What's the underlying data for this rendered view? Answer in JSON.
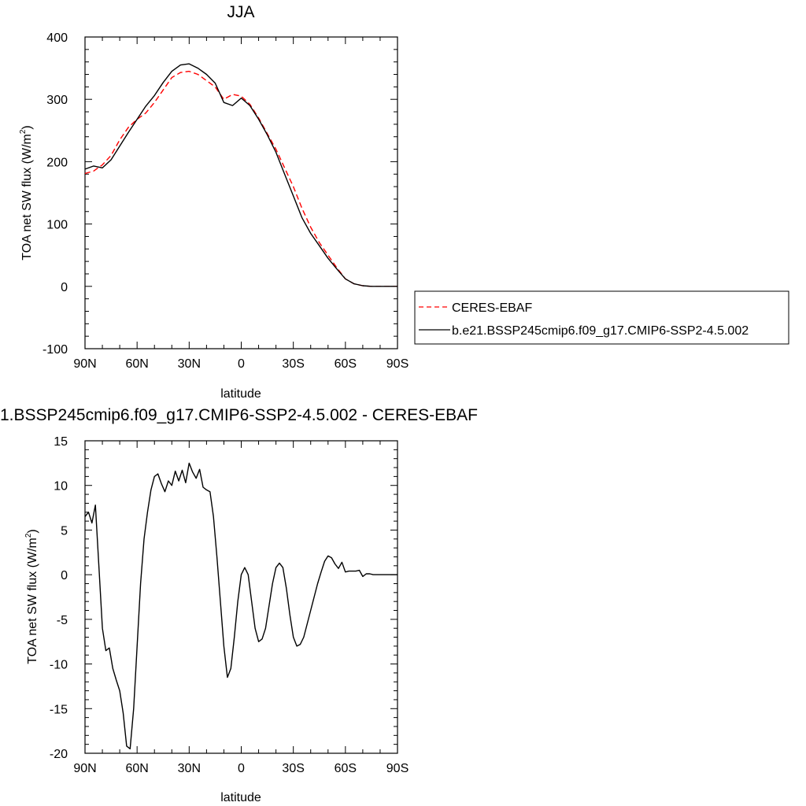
{
  "colors": {
    "observation": "#ff0000",
    "model": "#000000",
    "axis": "#000000"
  },
  "chart_data": [
    {
      "type": "line",
      "title": "JJA",
      "xlabel": "latitude",
      "ylabel": "TOA net SW flux (W/m",
      "ylabel_sup": "2",
      "ylabel_close": ")",
      "xlim": [
        90,
        -90
      ],
      "ylim": [
        -100,
        400
      ],
      "xticks": [
        90,
        60,
        30,
        0,
        -30,
        -60,
        -90
      ],
      "xtick_labels": [
        "90N",
        "60N",
        "30N",
        "0",
        "30S",
        "60S",
        "90S"
      ],
      "yticks": [
        -100,
        0,
        100,
        200,
        300,
        400
      ],
      "ytick_labels": [
        "-100",
        "0",
        "100",
        "200",
        "300",
        "400"
      ],
      "legend_placement": "right",
      "series": [
        {
          "name": "CERES-EBAF",
          "style": "dashed",
          "color": "#ff0000",
          "x": [
            90,
            85,
            80,
            75,
            70,
            65,
            60,
            55,
            50,
            45,
            40,
            35,
            30,
            25,
            20,
            15,
            10,
            5,
            0,
            -5,
            -10,
            -15,
            -20,
            -25,
            -30,
            -35,
            -40,
            -45,
            -50,
            -55,
            -60,
            -65,
            -70,
            -75,
            -80,
            -85,
            -90
          ],
          "y": [
            181,
            185,
            195,
            210,
            235,
            255,
            268,
            278,
            295,
            315,
            335,
            343,
            345,
            340,
            330,
            320,
            300,
            308,
            305,
            292,
            270,
            245,
            220,
            190,
            160,
            125,
            95,
            70,
            50,
            30,
            12,
            4,
            1,
            0,
            0,
            0,
            0
          ]
        },
        {
          "name": "b.e21.BSSP245cmip6.f09_g17.CMIP6-SSP2-4.5.002",
          "style": "solid",
          "color": "#000000",
          "x": [
            90,
            85,
            80,
            75,
            70,
            65,
            60,
            55,
            50,
            45,
            40,
            35,
            30,
            25,
            20,
            15,
            10,
            5,
            0,
            -5,
            -10,
            -15,
            -20,
            -25,
            -30,
            -35,
            -40,
            -45,
            -50,
            -55,
            -60,
            -65,
            -70,
            -75,
            -80,
            -85,
            -90
          ],
          "y": [
            188,
            193,
            190,
            203,
            225,
            247,
            268,
            289,
            306,
            327,
            345,
            355,
            357,
            350,
            340,
            326,
            295,
            290,
            302,
            290,
            268,
            243,
            215,
            180,
            145,
            110,
            85,
            65,
            45,
            28,
            12,
            4,
            1,
            0,
            0,
            0,
            0
          ]
        }
      ]
    },
    {
      "type": "line",
      "title": "1.BSSP245cmip6.f09_g17.CMIP6-SSP2-4.5.002 - CERES-EBAF",
      "xlabel": "latitude",
      "ylabel": "TOA net SW flux (W/m",
      "ylabel_sup": "2",
      "ylabel_close": ")",
      "xlim": [
        90,
        -90
      ],
      "ylim": [
        -20,
        15
      ],
      "xticks": [
        90,
        60,
        30,
        0,
        -30,
        -60,
        -90
      ],
      "xtick_labels": [
        "90N",
        "60N",
        "30N",
        "0",
        "30S",
        "60S",
        "90S"
      ],
      "yticks": [
        -20,
        -15,
        -10,
        -5,
        0,
        5,
        10,
        15
      ],
      "ytick_labels": [
        "-20",
        "-15",
        "-10",
        "-5",
        "0",
        "5",
        "10",
        "15"
      ],
      "series": [
        {
          "style": "solid",
          "color": "#000000",
          "x": [
            90,
            88,
            86,
            84,
            82,
            80,
            78,
            76,
            74,
            72,
            70,
            68,
            66,
            64,
            62,
            60,
            58,
            56,
            54,
            52,
            50,
            48,
            46,
            44,
            42,
            40,
            38,
            36,
            34,
            32,
            30,
            28,
            26,
            24,
            22,
            20,
            18,
            16,
            14,
            12,
            10,
            8,
            6,
            4,
            2,
            0,
            -2,
            -4,
            -6,
            -8,
            -10,
            -12,
            -14,
            -16,
            -18,
            -20,
            -22,
            -24,
            -26,
            -28,
            -30,
            -32,
            -34,
            -36,
            -38,
            -40,
            -42,
            -44,
            -46,
            -48,
            -50,
            -52,
            -54,
            -56,
            -58,
            -60,
            -62,
            -64,
            -66,
            -68,
            -70,
            -72,
            -74,
            -76,
            -78,
            -80,
            -82,
            -84,
            -86,
            -88,
            -90
          ],
          "y": [
            6.5,
            7.0,
            5.8,
            7.8,
            1.0,
            -6.0,
            -8.5,
            -8.2,
            -10.5,
            -11.8,
            -13.0,
            -15.5,
            -19.2,
            -19.5,
            -15.0,
            -8.0,
            -1.0,
            4.0,
            7.0,
            9.5,
            11.0,
            11.3,
            10.2,
            9.3,
            10.5,
            10.0,
            11.6,
            10.5,
            11.7,
            10.3,
            12.5,
            11.5,
            10.8,
            11.8,
            9.8,
            9.5,
            9.3,
            6.5,
            2.0,
            -3.0,
            -8.0,
            -11.5,
            -10.5,
            -7.0,
            -3.0,
            0.0,
            0.8,
            0.0,
            -3.0,
            -6.0,
            -7.5,
            -7.2,
            -6.0,
            -3.5,
            -1.0,
            0.8,
            1.3,
            0.8,
            -1.5,
            -4.5,
            -7.0,
            -8.0,
            -7.8,
            -7.0,
            -5.5,
            -4.0,
            -2.5,
            -1.0,
            0.3,
            1.5,
            2.1,
            1.9,
            1.2,
            0.7,
            1.4,
            0.3,
            0.4,
            0.4,
            0.4,
            0.5,
            -0.2,
            0.1,
            0.1,
            0.0,
            0.0,
            0.0,
            0.0,
            0.0,
            0.0,
            0.0,
            0.0
          ]
        }
      ]
    }
  ]
}
